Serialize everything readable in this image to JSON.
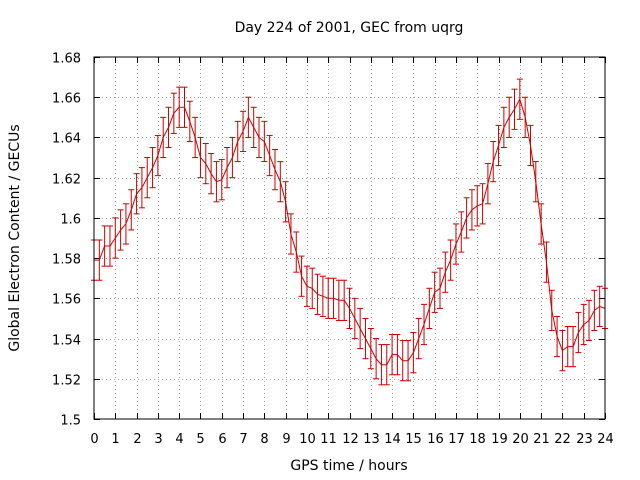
{
  "chart_data": {
    "type": "line",
    "title": "Day 224 of 2001, GEC from uqrg",
    "xlabel": "GPS time / hours",
    "ylabel": "Global Electron Content / GECUs",
    "xlim": [
      0,
      24
    ],
    "ylim": [
      1.5,
      1.68
    ],
    "xticks": [
      0,
      1,
      2,
      3,
      4,
      5,
      6,
      7,
      8,
      9,
      10,
      11,
      12,
      13,
      14,
      15,
      16,
      17,
      18,
      19,
      20,
      21,
      22,
      23,
      24
    ],
    "yticks": [
      1.5,
      1.52,
      1.54,
      1.56,
      1.58,
      1.6,
      1.62,
      1.64,
      1.66,
      1.68
    ],
    "xtick_labels": [
      "0",
      "1",
      "2",
      "3",
      "4",
      "5",
      "6",
      "7",
      "8",
      "9",
      "10",
      "11",
      "12",
      "13",
      "14",
      "15",
      "16",
      "17",
      "18",
      "19",
      "20",
      "21",
      "22",
      "23",
      "24"
    ],
    "ytick_labels": [
      "1.5",
      "1.52",
      "1.54",
      "1.56",
      "1.58",
      "1.6",
      "1.62",
      "1.64",
      "1.66",
      "1.68"
    ],
    "grid": true,
    "color": "#cc0000",
    "error": 0.01,
    "x": [
      0,
      0.25,
      0.5,
      0.75,
      1,
      1.25,
      1.5,
      1.75,
      2,
      2.25,
      2.5,
      2.75,
      3,
      3.25,
      3.5,
      3.75,
      4,
      4.25,
      4.5,
      4.75,
      5,
      5.25,
      5.5,
      5.75,
      6,
      6.25,
      6.5,
      6.75,
      7,
      7.25,
      7.5,
      7.75,
      8,
      8.25,
      8.5,
      8.75,
      9,
      9.25,
      9.5,
      9.75,
      10,
      10.25,
      10.5,
      10.75,
      11,
      11.25,
      11.5,
      11.75,
      12,
      12.25,
      12.5,
      12.75,
      13,
      13.25,
      13.5,
      13.75,
      14,
      14.25,
      14.5,
      14.75,
      15,
      15.25,
      15.5,
      15.75,
      16,
      16.25,
      16.5,
      16.75,
      17,
      17.25,
      17.5,
      17.75,
      18,
      18.25,
      18.5,
      18.75,
      19,
      19.25,
      19.5,
      19.75,
      20,
      20.25,
      20.5,
      20.75,
      21,
      21.25,
      21.5,
      21.75,
      22,
      22.25,
      22.5,
      22.75,
      23,
      23.25,
      23.5,
      23.75,
      24
    ],
    "y": [
      1.579,
      1.579,
      1.586,
      1.586,
      1.59,
      1.594,
      1.597,
      1.604,
      1.612,
      1.615,
      1.62,
      1.625,
      1.631,
      1.64,
      1.645,
      1.652,
      1.655,
      1.655,
      1.648,
      1.64,
      1.63,
      1.627,
      1.622,
      1.618,
      1.619,
      1.625,
      1.63,
      1.638,
      1.643,
      1.65,
      1.645,
      1.64,
      1.638,
      1.631,
      1.624,
      1.618,
      1.608,
      1.592,
      1.583,
      1.571,
      1.566,
      1.565,
      1.562,
      1.561,
      1.56,
      1.56,
      1.559,
      1.559,
      1.555,
      1.55,
      1.545,
      1.54,
      1.535,
      1.53,
      1.527,
      1.527,
      1.532,
      1.532,
      1.529,
      1.529,
      1.533,
      1.54,
      1.547,
      1.555,
      1.563,
      1.565,
      1.573,
      1.579,
      1.587,
      1.593,
      1.6,
      1.604,
      1.606,
      1.607,
      1.617,
      1.628,
      1.636,
      1.645,
      1.65,
      1.654,
      1.659,
      1.65,
      1.636,
      1.618,
      1.597,
      1.578,
      1.554,
      1.541,
      1.534,
      1.536,
      1.536,
      1.543,
      1.547,
      1.549,
      1.554,
      1.556,
      1.555
    ]
  }
}
